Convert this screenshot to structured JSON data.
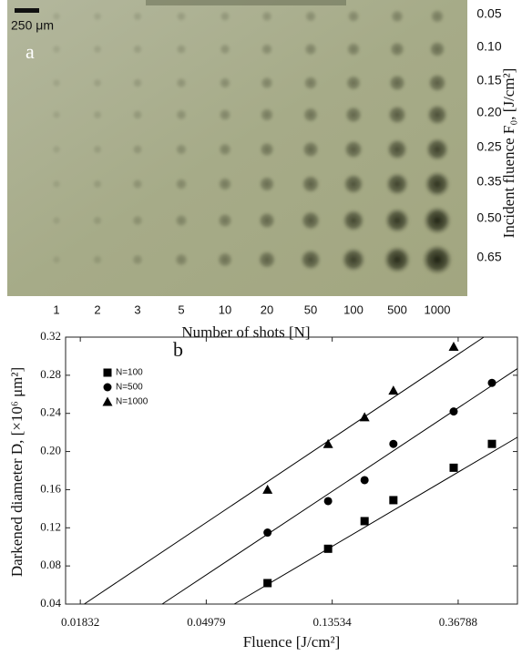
{
  "panel_a": {
    "scale_bar": "250 μm",
    "panel_label": "a",
    "fluence_labels": [
      "0.05",
      "0.10",
      "0.15",
      "0.20",
      "0.25",
      "0.35",
      "0.50",
      "0.65"
    ],
    "shot_labels": [
      "1",
      "2",
      "3",
      "5",
      "10",
      "20",
      "50",
      "100",
      "500",
      "1000"
    ],
    "x_label": "Number of shots [N]",
    "y_label": "Incident fluence F₀, [J/cm²]"
  },
  "chart_data": {
    "type": "scatter",
    "panel_label": "b",
    "x_label": "Fluence [J/cm²]",
    "y_label": "Darkened diameter D, [×10⁶ μm²]",
    "xscale": "log",
    "xlim": [
      0.0163,
      0.589
    ],
    "xticks": [
      0.01832,
      0.04979,
      0.13534,
      0.36788
    ],
    "ylim": [
      0.04,
      0.32
    ],
    "yticks": [
      0.04,
      0.08,
      0.12,
      0.16,
      {
        "value": 0.2,
        "label": "0.20"
      },
      0.24,
      0.28,
      0.32
    ],
    "grid": false,
    "legend": "upper left",
    "series": [
      {
        "name": "N=100",
        "color": "#000000",
        "marker": "square",
        "x": [
          0.081,
          0.131,
          0.175,
          0.22,
          0.355,
          0.481
        ],
        "values": [
          0.062,
          0.098,
          0.127,
          0.149,
          0.183,
          0.208
        ],
        "fit_x": [
          0.0622,
          0.589
        ],
        "fit_y": [
          0.04,
          0.215
        ]
      },
      {
        "name": "N=500",
        "color": "#000000",
        "marker": "circle",
        "x": [
          0.081,
          0.131,
          0.175,
          0.22,
          0.355,
          0.481
        ],
        "values": [
          0.115,
          0.148,
          0.17,
          0.208,
          0.242,
          0.272
        ],
        "fit_x": [
          0.0351,
          0.589
        ],
        "fit_y": [
          0.04,
          0.287
        ]
      },
      {
        "name": "N=1000",
        "color": "#000000",
        "marker": "triangle",
        "x": [
          0.081,
          0.131,
          0.175,
          0.22,
          0.355
        ],
        "values": [
          0.16,
          0.208,
          0.236,
          0.264,
          0.31
        ],
        "fit_x": [
          0.0189,
          0.451
        ],
        "fit_y": [
          0.04,
          0.32
        ]
      }
    ]
  }
}
